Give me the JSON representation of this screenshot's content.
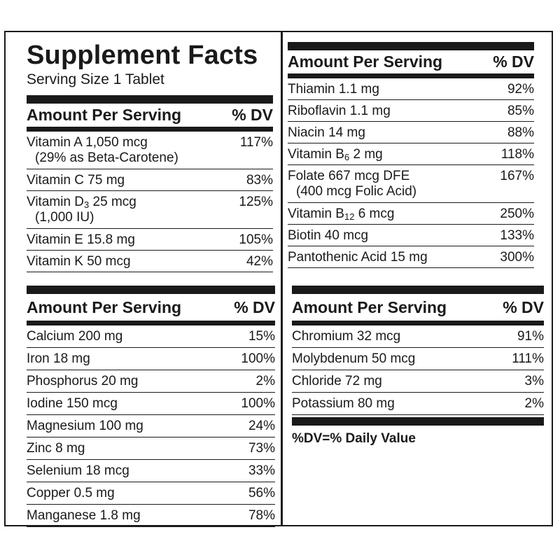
{
  "title": "Supplement Facts",
  "serving_size": "Serving Size 1 Tablet",
  "header": {
    "amount": "Amount Per Serving",
    "dv": "% DV"
  },
  "vitamins_left": [
    {
      "name": "Vitamin A 1,050 mcg",
      "sub": "(29% as Beta-Carotene)",
      "dv": "117%"
    },
    {
      "name": "Vitamin C 75 mg",
      "dv": "83%"
    },
    {
      "name_pre": "Vitamin D",
      "name_sub": "3",
      "name_post": " 25 mcg",
      "sub": "(1,000 IU)",
      "dv": "125%"
    },
    {
      "name": "Vitamin E 15.8 mg",
      "dv": "105%"
    },
    {
      "name": "Vitamin K 50 mcg",
      "dv": "42%"
    }
  ],
  "minerals_left": [
    {
      "name": "Calcium 200 mg",
      "dv": "15%"
    },
    {
      "name": "Iron 18 mg",
      "dv": "100%"
    },
    {
      "name": "Phosphorus 20 mg",
      "dv": "2%"
    },
    {
      "name": "Iodine 150 mcg",
      "dv": "100%"
    },
    {
      "name": "Magnesium 100 mg",
      "dv": "24%"
    },
    {
      "name": "Zinc 8 mg",
      "dv": "73%"
    },
    {
      "name": "Selenium 18 mcg",
      "dv": "33%"
    },
    {
      "name": "Copper 0.5 mg",
      "dv": "56%"
    },
    {
      "name": "Manganese 1.8 mg",
      "dv": "78%"
    }
  ],
  "vitamins_right": [
    {
      "name": "Thiamin 1.1 mg",
      "dv": "92%"
    },
    {
      "name": "Riboflavin 1.1 mg",
      "dv": "85%"
    },
    {
      "name": "Niacin 14 mg",
      "dv": "88%"
    },
    {
      "name_pre": "Vitamin B",
      "name_sub": "6",
      "name_post": " 2 mg",
      "dv": "118%"
    },
    {
      "name": "Folate 667 mcg DFE",
      "sub": "(400 mcg Folic Acid)",
      "dv": "167%"
    },
    {
      "name_pre": "Vitamin B",
      "name_sub": "12",
      "name_post": " 6 mcg",
      "dv": "250%"
    },
    {
      "name": "Biotin 40 mcg",
      "dv": "133%"
    },
    {
      "name": "Pantothenic Acid 15 mg",
      "dv": "300%"
    }
  ],
  "minerals_right": [
    {
      "name": "Chromium 32 mcg",
      "dv": "91%"
    },
    {
      "name": "Molybdenum 50 mcg",
      "dv": "111%"
    },
    {
      "name": "Chloride 72 mg",
      "dv": "3%"
    },
    {
      "name": "Potassium 80 mg",
      "dv": "2%"
    }
  ],
  "footnote": "%DV=% Daily Value"
}
